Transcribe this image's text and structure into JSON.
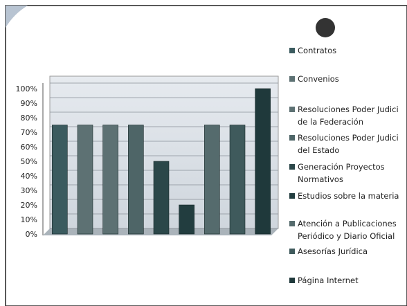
{
  "chart_data": {
    "type": "bar",
    "categories": [
      "Contratos",
      "Convenios",
      "Resoluciones Poder Judici\nde la Federación",
      "Resoluciones Poder Judici\ndel Estado",
      "Generación Proyectos\nNormativos",
      "Estudios sobre la materia",
      "Atención a Publicaciones\nPeriódico y Diario Oficial",
      "Asesorías Jurídica",
      "Página Internet"
    ],
    "values": [
      75,
      75,
      75,
      75,
      50,
      20,
      75,
      75,
      100
    ],
    "colors": [
      "#3b5b5f",
      "#5d7173",
      "#5d7173",
      "#4e6567",
      "#2b4749",
      "#223d3f",
      "#556b6d",
      "#3f5a5c",
      "#1f393b"
    ],
    "ylim": [
      0,
      100
    ],
    "yticks": [
      {
        "value": 0,
        "label": "0%"
      },
      {
        "value": 10,
        "label": "10%"
      },
      {
        "value": 20,
        "label": "20%"
      },
      {
        "value": 30,
        "label": "30%"
      },
      {
        "value": 40,
        "label": "40%"
      },
      {
        "value": 50,
        "label": "50%"
      },
      {
        "value": 60,
        "label": "60%"
      },
      {
        "value": 70,
        "label": "70%"
      },
      {
        "value": 80,
        "label": "80%"
      },
      {
        "value": 90,
        "label": "90%"
      },
      {
        "value": 100,
        "label": "100%"
      }
    ],
    "grid": true
  }
}
